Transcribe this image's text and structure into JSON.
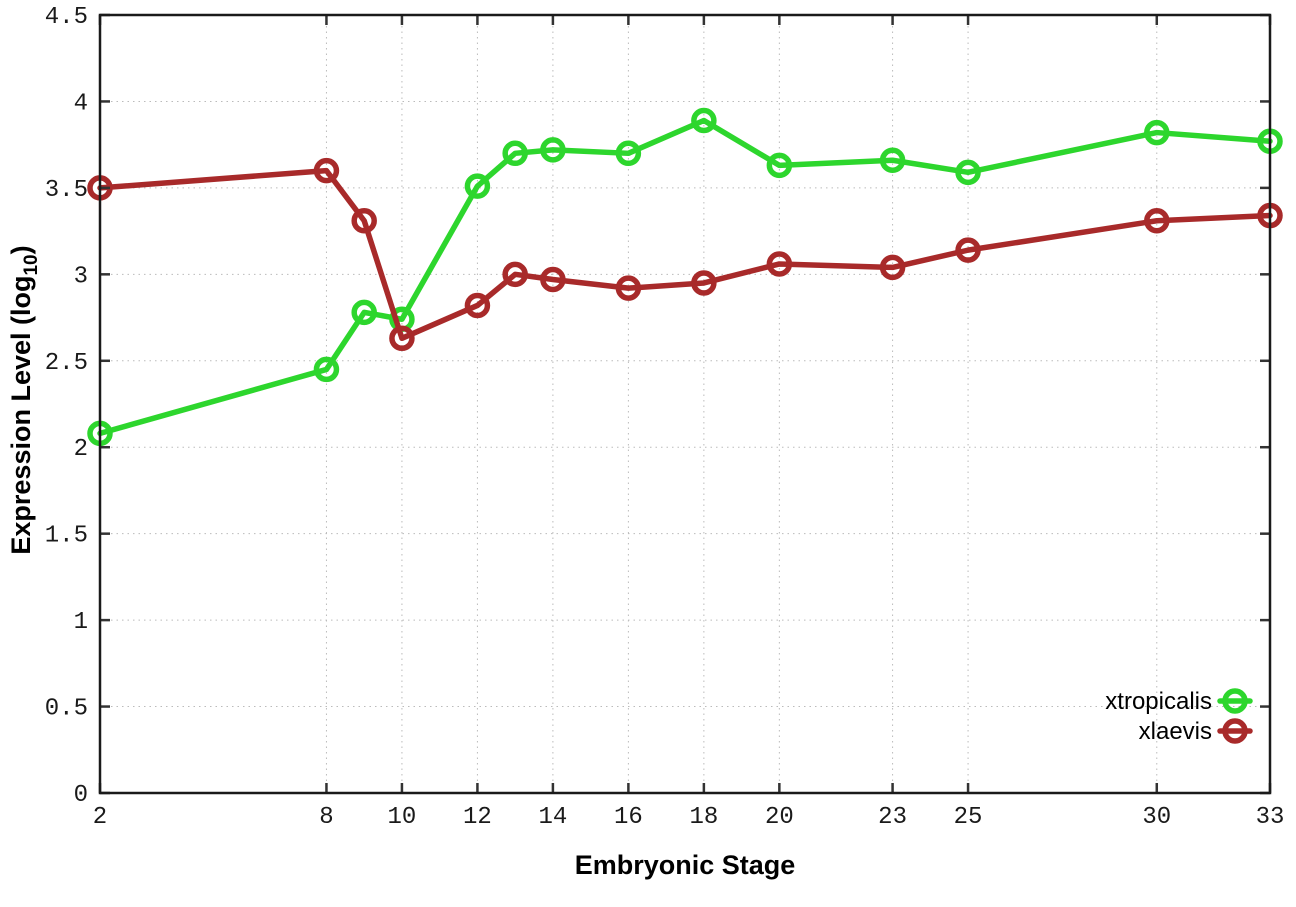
{
  "chart_data": {
    "type": "line",
    "title": "",
    "xlabel": "Embryonic Stage",
    "ylabel": "Expression Level (log10)",
    "ylabel_parts": {
      "pre": "Expression Level (log",
      "sub": "10",
      "post": ")"
    },
    "x": [
      2,
      8,
      9,
      10,
      12,
      13,
      14,
      16,
      18,
      20,
      23,
      25,
      30,
      33
    ],
    "x_tick_labels": [
      2,
      8,
      10,
      12,
      14,
      16,
      18,
      20,
      23,
      25,
      30,
      33
    ],
    "y_tick_labels": [
      0,
      0.5,
      1,
      1.5,
      2,
      2.5,
      3,
      3.5,
      4,
      4.5
    ],
    "xlim": [
      2,
      33
    ],
    "ylim": [
      0,
      4.5
    ],
    "grid": true,
    "legend_position": "inside-bottom-right",
    "series": [
      {
        "name": "xtropicalis",
        "color": "#2dd62d",
        "values": [
          2.08,
          2.45,
          2.78,
          2.74,
          3.51,
          3.7,
          3.72,
          3.7,
          3.89,
          3.63,
          3.66,
          3.59,
          3.82,
          3.77
        ]
      },
      {
        "name": "xlaevis",
        "color": "#a82a2a",
        "values": [
          3.5,
          3.6,
          3.31,
          2.63,
          2.82,
          3.0,
          2.97,
          2.92,
          2.95,
          3.06,
          3.04,
          3.14,
          3.31,
          3.34
        ]
      }
    ]
  },
  "styles": {
    "background": "#ffffff",
    "frame_color": "#1a1a1a",
    "tick_color": "#333333",
    "grid_color": "#bbbbbb",
    "marker": "open-circle"
  }
}
